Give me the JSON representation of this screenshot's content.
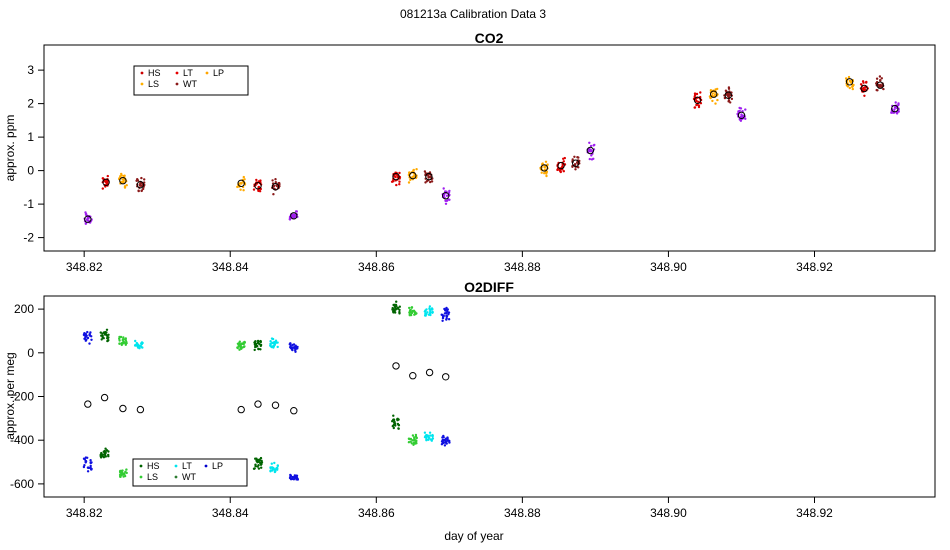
{
  "figure": {
    "suptitle": "081213a   Calibration Data 3",
    "xlabel": "day of year"
  },
  "chart_data": [
    {
      "type": "scatter",
      "title": "CO2",
      "xlabel": "",
      "ylabel": "approx. ppm",
      "xlim": [
        348.8145,
        348.9365
      ],
      "ylim": [
        -2.4,
        3.75
      ],
      "xticks": [
        348.82,
        348.84,
        348.86,
        348.88,
        348.9,
        348.92
      ],
      "xtick_labels": [
        "348.82",
        "348.84",
        "348.86",
        "348.88",
        "348.90",
        "348.92"
      ],
      "yticks": [
        -2,
        -1,
        0,
        1,
        2,
        3
      ],
      "ytick_labels": [
        "-2",
        "-1",
        "0",
        "1",
        "2",
        "3"
      ],
      "legend": {
        "position": "top-left",
        "entries": [
          {
            "label": "HS",
            "color": "#cc0000"
          },
          {
            "label": "LS",
            "color": "#ffb000"
          },
          {
            "label": "LT",
            "color": "#e60000"
          },
          {
            "label": "WT",
            "color": "#8b1a1a"
          },
          {
            "label": "LP",
            "color": "#ffa500"
          }
        ]
      },
      "clusters": [
        {
          "series": "LP",
          "color": "#a020f0",
          "x": 348.8205,
          "mean": -1.45,
          "spread": 0.3
        },
        {
          "series": "HS",
          "color": "#dd0000",
          "x": 348.823,
          "mean": -0.35,
          "spread": 0.25
        },
        {
          "series": "LS",
          "color": "#ffaa00",
          "x": 348.8253,
          "mean": -0.3,
          "spread": 0.3
        },
        {
          "series": "WT",
          "color": "#8b1a1a",
          "x": 348.8277,
          "mean": -0.42,
          "spread": 0.28
        },
        {
          "series": "LS",
          "color": "#ffaa00",
          "x": 348.8415,
          "mean": -0.38,
          "spread": 0.3
        },
        {
          "series": "HS",
          "color": "#dd0000",
          "x": 348.8438,
          "mean": -0.45,
          "spread": 0.28
        },
        {
          "series": "WT",
          "color": "#8b1a1a",
          "x": 348.8462,
          "mean": -0.48,
          "spread": 0.28
        },
        {
          "series": "LP",
          "color": "#a020f0",
          "x": 348.8487,
          "mean": -1.35,
          "spread": 0.3
        },
        {
          "series": "HS",
          "color": "#dd0000",
          "x": 348.8627,
          "mean": -0.18,
          "spread": 0.3
        },
        {
          "series": "LS",
          "color": "#ffaa00",
          "x": 348.865,
          "mean": -0.15,
          "spread": 0.3
        },
        {
          "series": "WT",
          "color": "#8b1a1a",
          "x": 348.8672,
          "mean": -0.18,
          "spread": 0.28
        },
        {
          "series": "LP",
          "color": "#a020f0",
          "x": 348.8695,
          "mean": -0.75,
          "spread": 0.28
        },
        {
          "series": "LS",
          "color": "#ffaa00",
          "x": 348.883,
          "mean": 0.08,
          "spread": 0.3
        },
        {
          "series": "HS",
          "color": "#dd0000",
          "x": 348.8853,
          "mean": 0.15,
          "spread": 0.35
        },
        {
          "series": "WT",
          "color": "#8b1a1a",
          "x": 348.8873,
          "mean": 0.22,
          "spread": 0.3
        },
        {
          "series": "LP",
          "color": "#a020f0",
          "x": 348.8893,
          "mean": 0.6,
          "spread": 0.35
        },
        {
          "series": "HS",
          "color": "#dd0000",
          "x": 348.904,
          "mean": 2.1,
          "spread": 0.3
        },
        {
          "series": "LS",
          "color": "#ffaa00",
          "x": 348.9062,
          "mean": 2.28,
          "spread": 0.4
        },
        {
          "series": "WT",
          "color": "#8b1a1a",
          "x": 348.9082,
          "mean": 2.25,
          "spread": 0.3
        },
        {
          "series": "LP",
          "color": "#a020f0",
          "x": 348.91,
          "mean": 1.65,
          "spread": 0.3
        },
        {
          "series": "LS",
          "color": "#ffaa00",
          "x": 348.9248,
          "mean": 2.65,
          "spread": 0.3
        },
        {
          "series": "HS",
          "color": "#dd0000",
          "x": 348.9268,
          "mean": 2.45,
          "spread": 0.3
        },
        {
          "series": "WT",
          "color": "#8b1a1a",
          "x": 348.929,
          "mean": 2.55,
          "spread": 0.3
        },
        {
          "series": "LP",
          "color": "#a020f0",
          "x": 348.931,
          "mean": 1.85,
          "spread": 0.3
        }
      ],
      "means": [
        {
          "x": 348.8205,
          "y": -1.45
        },
        {
          "x": 348.823,
          "y": -0.35
        },
        {
          "x": 348.8253,
          "y": -0.3
        },
        {
          "x": 348.8277,
          "y": -0.42
        },
        {
          "x": 348.8415,
          "y": -0.38
        },
        {
          "x": 348.8438,
          "y": -0.45
        },
        {
          "x": 348.8462,
          "y": -0.48
        },
        {
          "x": 348.8487,
          "y": -1.35
        },
        {
          "x": 348.8627,
          "y": -0.18
        },
        {
          "x": 348.865,
          "y": -0.15
        },
        {
          "x": 348.8672,
          "y": -0.18
        },
        {
          "x": 348.8695,
          "y": -0.75
        },
        {
          "x": 348.883,
          "y": 0.08
        },
        {
          "x": 348.8853,
          "y": 0.15
        },
        {
          "x": 348.8873,
          "y": 0.22
        },
        {
          "x": 348.8893,
          "y": 0.6
        },
        {
          "x": 348.904,
          "y": 2.1
        },
        {
          "x": 348.9062,
          "y": 2.28
        },
        {
          "x": 348.9082,
          "y": 2.25
        },
        {
          "x": 348.91,
          "y": 1.65
        },
        {
          "x": 348.9248,
          "y": 2.65
        },
        {
          "x": 348.9268,
          "y": 2.45
        },
        {
          "x": 348.929,
          "y": 2.55
        },
        {
          "x": 348.931,
          "y": 1.85
        }
      ]
    },
    {
      "type": "scatter",
      "title": "O2DIFF",
      "xlabel": "day of year",
      "ylabel": "approx. per meg",
      "xlim": [
        348.8145,
        348.9365
      ],
      "ylim": [
        -660,
        260
      ],
      "xticks": [
        348.82,
        348.84,
        348.86,
        348.88,
        348.9,
        348.92
      ],
      "xtick_labels": [
        "348.82",
        "348.84",
        "348.86",
        "348.88",
        "348.90",
        "348.92"
      ],
      "yticks": [
        -600,
        -400,
        -200,
        0,
        200
      ],
      "ytick_labels": [
        "-600",
        "-400",
        "-200",
        "0",
        "200"
      ],
      "legend": {
        "position": "bottom-left",
        "entries": [
          {
            "label": "HS",
            "color": "#006400"
          },
          {
            "label": "LS",
            "color": "#33cc33"
          },
          {
            "label": "LT",
            "color": "#00e5ee"
          },
          {
            "label": "WT",
            "color": "#2e7d32"
          },
          {
            "label": "LP",
            "color": "#0000cd"
          }
        ]
      },
      "clusters": [
        {
          "series": "LP",
          "color": "#1010e0",
          "x": 348.8205,
          "mean": 70,
          "spread": 45
        },
        {
          "series": "HS",
          "color": "#006400",
          "x": 348.8228,
          "mean": 75,
          "spread": 40
        },
        {
          "series": "LS",
          "color": "#33cc33",
          "x": 348.8253,
          "mean": 50,
          "spread": 30
        },
        {
          "series": "LT",
          "color": "#00e5ee",
          "x": 348.8275,
          "mean": 35,
          "spread": 35
        },
        {
          "series": "LP",
          "color": "#1010e0",
          "x": 348.8205,
          "mean": -520,
          "spread": 60
        },
        {
          "series": "HS",
          "color": "#006400",
          "x": 348.8228,
          "mean": -460,
          "spread": 40
        },
        {
          "series": "LS",
          "color": "#33cc33",
          "x": 348.8253,
          "mean": -555,
          "spread": 30
        },
        {
          "series": "LS",
          "color": "#33cc33",
          "x": 348.8415,
          "mean": 35,
          "spread": 35
        },
        {
          "series": "HS",
          "color": "#006400",
          "x": 348.8438,
          "mean": 35,
          "spread": 35
        },
        {
          "series": "LT",
          "color": "#00e5ee",
          "x": 348.846,
          "mean": 40,
          "spread": 35
        },
        {
          "series": "LP",
          "color": "#1010e0",
          "x": 348.8487,
          "mean": 25,
          "spread": 30
        },
        {
          "series": "HS",
          "color": "#006400",
          "x": 348.8438,
          "mean": -505,
          "spread": 45
        },
        {
          "series": "LT",
          "color": "#00e5ee",
          "x": 348.846,
          "mean": -530,
          "spread": 30
        },
        {
          "series": "LP",
          "color": "#1010e0",
          "x": 348.8487,
          "mean": -570,
          "spread": 30
        },
        {
          "series": "HS",
          "color": "#006400",
          "x": 348.8627,
          "mean": 200,
          "spread": 40
        },
        {
          "series": "LS",
          "color": "#33cc33",
          "x": 348.865,
          "mean": 190,
          "spread": 35
        },
        {
          "series": "LT",
          "color": "#00e5ee",
          "x": 348.8672,
          "mean": 190,
          "spread": 30
        },
        {
          "series": "LP",
          "color": "#1010e0",
          "x": 348.8695,
          "mean": 175,
          "spread": 40
        },
        {
          "series": "HS",
          "color": "#006400",
          "x": 348.8627,
          "mean": -320,
          "spread": 45
        },
        {
          "series": "LS",
          "color": "#33cc33",
          "x": 348.865,
          "mean": -400,
          "spread": 40
        },
        {
          "series": "LT",
          "color": "#00e5ee",
          "x": 348.8672,
          "mean": -380,
          "spread": 35
        },
        {
          "series": "LP",
          "color": "#1010e0",
          "x": 348.8695,
          "mean": -400,
          "spread": 45
        }
      ],
      "means": [
        {
          "x": 348.8205,
          "y": -235
        },
        {
          "x": 348.8228,
          "y": -205
        },
        {
          "x": 348.8253,
          "y": -255
        },
        {
          "x": 348.8277,
          "y": -260
        },
        {
          "x": 348.8415,
          "y": -260
        },
        {
          "x": 348.8438,
          "y": -235
        },
        {
          "x": 348.8462,
          "y": -240
        },
        {
          "x": 348.8487,
          "y": -265
        },
        {
          "x": 348.8627,
          "y": -60
        },
        {
          "x": 348.865,
          "y": -105
        },
        {
          "x": 348.8673,
          "y": -90
        },
        {
          "x": 348.8695,
          "y": -110
        }
      ]
    }
  ]
}
